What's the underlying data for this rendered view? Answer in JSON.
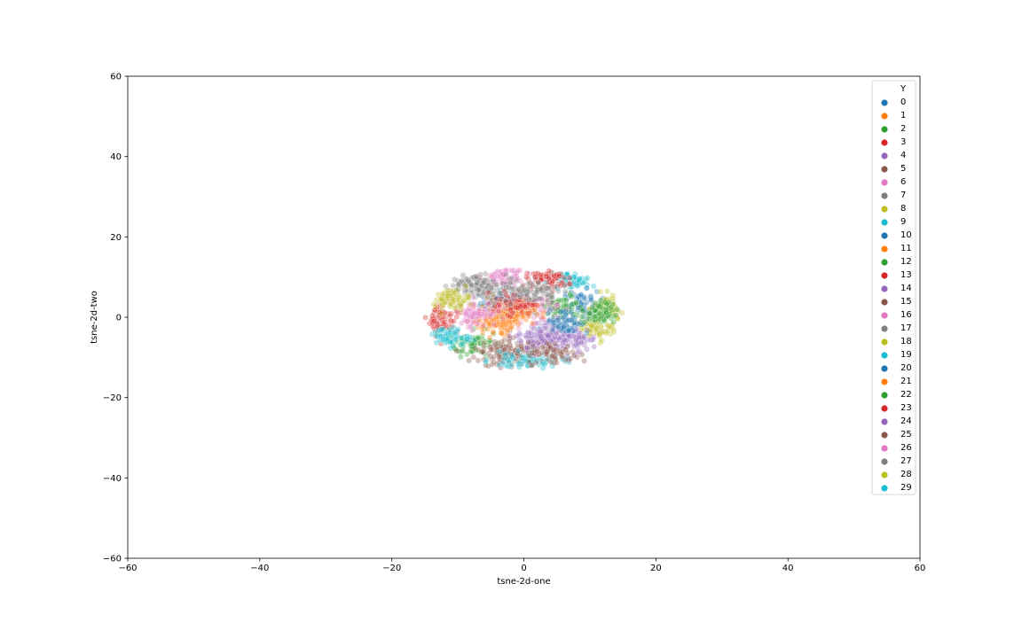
{
  "chart_data": {
    "type": "scatter",
    "title": "",
    "xlabel": "tsne-2d-one",
    "ylabel": "tsne-2d-two",
    "xlim": [
      -60,
      60
    ],
    "ylim": [
      -60,
      60
    ],
    "xticks": [
      -60,
      -40,
      -20,
      0,
      20,
      40,
      60
    ],
    "yticks": [
      -60,
      -40,
      -20,
      0,
      20,
      40,
      60
    ],
    "xtick_labels": [
      "−60",
      "−40",
      "−20",
      "0",
      "20",
      "40",
      "60"
    ],
    "ytick_labels": [
      "−60",
      "−40",
      "−20",
      "0",
      "20",
      "40",
      "60"
    ],
    "grid": false,
    "legend_title": "Y",
    "legend_position": "top-right",
    "series": [
      {
        "name": "0",
        "color": "#1f77b4",
        "center": [
          -3.0,
          3.5
        ],
        "spread": [
          1.8,
          1.6
        ]
      },
      {
        "name": "1",
        "color": "#ff7f0e",
        "center": [
          -3.5,
          0.5
        ],
        "spread": [
          1.8,
          2.0
        ]
      },
      {
        "name": "2",
        "color": "#2ca02c",
        "center": [
          -7.5,
          -6.5
        ],
        "spread": [
          2.0,
          1.6
        ]
      },
      {
        "name": "3",
        "color": "#d62728",
        "center": [
          -12.5,
          -0.5
        ],
        "spread": [
          1.4,
          2.0
        ]
      },
      {
        "name": "4",
        "color": "#9467bd",
        "center": [
          4.0,
          -4.0
        ],
        "spread": [
          2.0,
          1.8
        ]
      },
      {
        "name": "5",
        "color": "#8c564b",
        "center": [
          -1.0,
          -8.5
        ],
        "spread": [
          2.5,
          1.6
        ]
      },
      {
        "name": "6",
        "color": "#e377c2",
        "center": [
          -3.0,
          10.0
        ],
        "spread": [
          1.6,
          1.2
        ]
      },
      {
        "name": "7",
        "color": "#7f7f7f",
        "center": [
          -8.5,
          8.5
        ],
        "spread": [
          2.0,
          1.4
        ]
      },
      {
        "name": "8",
        "color": "#bcbd22",
        "center": [
          10.5,
          -3.0
        ],
        "spread": [
          1.8,
          1.5
        ]
      },
      {
        "name": "9",
        "color": "#17becf",
        "center": [
          7.5,
          9.5
        ],
        "spread": [
          2.0,
          1.4
        ]
      },
      {
        "name": "10",
        "color": "#1f77b4",
        "center": [
          8.5,
          3.5
        ],
        "spread": [
          1.6,
          1.6
        ]
      },
      {
        "name": "11",
        "color": "#ff7f0e",
        "center": [
          -4.5,
          -1.5
        ],
        "spread": [
          1.4,
          1.6
        ]
      },
      {
        "name": "12",
        "color": "#2ca02c",
        "center": [
          5.5,
          2.5
        ],
        "spread": [
          1.8,
          1.6
        ]
      },
      {
        "name": "13",
        "color": "#d62728",
        "center": [
          3.5,
          9.5
        ],
        "spread": [
          1.6,
          1.2
        ]
      },
      {
        "name": "14",
        "color": "#9467bd",
        "center": [
          7.5,
          -5.5
        ],
        "spread": [
          1.8,
          1.6
        ]
      },
      {
        "name": "15",
        "color": "#8c564b",
        "center": [
          -3.0,
          -9.5
        ],
        "spread": [
          2.2,
          1.4
        ]
      },
      {
        "name": "16",
        "color": "#e377c2",
        "center": [
          1.5,
          2.5
        ],
        "spread": [
          1.8,
          1.8
        ]
      },
      {
        "name": "17",
        "color": "#7f7f7f",
        "center": [
          -5.0,
          7.0
        ],
        "spread": [
          2.0,
          1.4
        ]
      },
      {
        "name": "18",
        "color": "#bcbd22",
        "center": [
          13.0,
          2.0
        ],
        "spread": [
          1.2,
          1.8
        ]
      },
      {
        "name": "19",
        "color": "#17becf",
        "center": [
          0.5,
          -11.0
        ],
        "spread": [
          2.8,
          1.0
        ]
      },
      {
        "name": "20",
        "color": "#1f77b4",
        "center": [
          6.5,
          -1.0
        ],
        "spread": [
          1.6,
          1.6
        ]
      },
      {
        "name": "21",
        "color": "#ff7f0e",
        "center": [
          -1.0,
          1.5
        ],
        "spread": [
          1.4,
          1.4
        ]
      },
      {
        "name": "22",
        "color": "#2ca02c",
        "center": [
          11.5,
          1.0
        ],
        "spread": [
          1.4,
          1.6
        ]
      },
      {
        "name": "23",
        "color": "#d62728",
        "center": [
          -1.5,
          3.5
        ],
        "spread": [
          1.6,
          1.4
        ]
      },
      {
        "name": "24",
        "color": "#9467bd",
        "center": [
          2.5,
          -5.5
        ],
        "spread": [
          1.8,
          1.6
        ]
      },
      {
        "name": "25",
        "color": "#8c564b",
        "center": [
          4.5,
          -9.0
        ],
        "spread": [
          2.0,
          1.4
        ]
      },
      {
        "name": "26",
        "color": "#e377c2",
        "center": [
          -7.0,
          1.0
        ],
        "spread": [
          1.4,
          1.6
        ]
      },
      {
        "name": "27",
        "color": "#7f7f7f",
        "center": [
          1.0,
          6.5
        ],
        "spread": [
          2.0,
          1.4
        ]
      },
      {
        "name": "28",
        "color": "#bcbd22",
        "center": [
          -11.0,
          4.5
        ],
        "spread": [
          1.4,
          1.2
        ]
      },
      {
        "name": "29",
        "color": "#17becf",
        "center": [
          -11.5,
          -5.0
        ],
        "spread": [
          1.6,
          1.2
        ]
      }
    ]
  }
}
